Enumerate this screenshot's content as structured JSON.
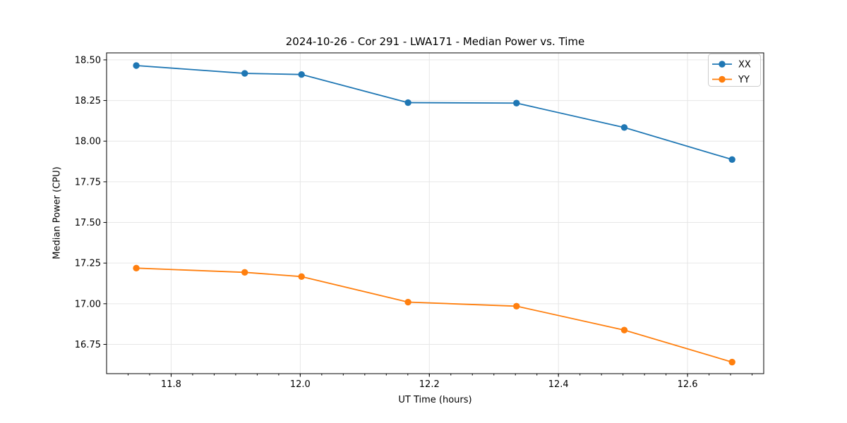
{
  "chart_data": {
    "type": "line",
    "title": "2024-10-26 - Cor 291 - LWA171 - Median Power vs. Time",
    "xlabel": "UT Time (hours)",
    "ylabel": "Median Power (CPU)",
    "x": [
      11.746,
      11.914,
      12.002,
      12.167,
      12.335,
      12.502,
      12.669
    ],
    "series": [
      {
        "name": "XX",
        "color": "#1f77b4",
        "values": [
          18.465,
          18.417,
          18.41,
          18.237,
          18.234,
          18.084,
          17.887
        ]
      },
      {
        "name": "YY",
        "color": "#ff7f0e",
        "values": [
          17.219,
          17.193,
          17.167,
          17.01,
          16.985,
          16.838,
          16.641
        ]
      }
    ],
    "xlim": [
      11.7,
      12.718
    ],
    "ylim": [
      16.57,
      18.543
    ],
    "xticks": [
      11.8,
      12.0,
      12.2,
      12.4,
      12.6
    ],
    "xtick_labels": [
      "11.8",
      "12.0",
      "12.2",
      "12.4",
      "12.6"
    ],
    "yticks": [
      16.75,
      17.0,
      17.25,
      17.5,
      17.75,
      18.0,
      18.25,
      18.5
    ],
    "ytick_labels": [
      "16.75",
      "17.00",
      "17.25",
      "17.50",
      "17.75",
      "18.00",
      "18.25",
      "18.50"
    ],
    "x_minor_step": 0.0333333,
    "grid": true,
    "marker": "circle",
    "legend": {
      "position": "upper right",
      "entries": [
        "XX",
        "YY"
      ]
    },
    "colors": {
      "background": "#ffffff",
      "grid": "#e6e6e6",
      "spine": "#000000",
      "text": "#000000"
    }
  }
}
